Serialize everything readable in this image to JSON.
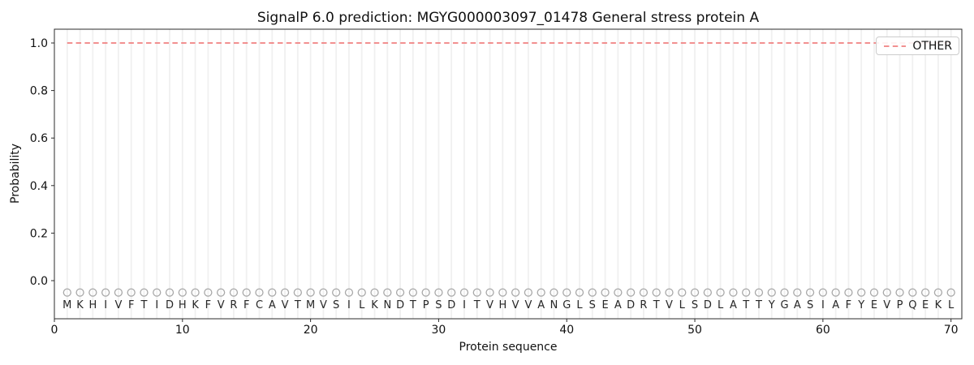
{
  "figure": {
    "title": "SignalP 6.0 prediction: MGYG000003097_01478 General stress protein A",
    "xlabel": "Protein sequence",
    "ylabel": "Probability",
    "legend_label": "OTHER"
  },
  "chart_data": {
    "type": "line",
    "title": "SignalP 6.0 prediction: MGYG000003097_01478 General stress protein A",
    "xlabel": "Protein sequence",
    "ylabel": "Probability",
    "xlim": [
      0,
      70.9
    ],
    "ylim": [
      -0.16,
      1.06
    ],
    "x_ticks": [
      0,
      10,
      20,
      30,
      40,
      50,
      60,
      70
    ],
    "x_tick_labels": [
      "0",
      "10",
      "20",
      "30",
      "40",
      "50",
      "60",
      "70"
    ],
    "y_ticks": [
      0.0,
      0.2,
      0.4,
      0.6,
      0.8,
      1.0
    ],
    "y_tick_labels": [
      "0.0",
      "0.2",
      "0.4",
      "0.6",
      "0.8",
      "1.0"
    ],
    "grid": "vertical gridline at every residue position 1-70, no horizontal grid",
    "legend_position": "upper right",
    "series": [
      {
        "name": "OTHER",
        "line_style": "dashed",
        "color": "#f08080",
        "x_range": [
          1,
          70
        ],
        "y_constant": 1.0
      }
    ],
    "sequence": [
      "M",
      "K",
      "H",
      "I",
      "V",
      "F",
      "T",
      "I",
      "D",
      "H",
      "K",
      "F",
      "V",
      "R",
      "F",
      "C",
      "A",
      "V",
      "T",
      "M",
      "V",
      "S",
      "I",
      "L",
      "K",
      "N",
      "D",
      "T",
      "P",
      "S",
      "D",
      "I",
      "T",
      "V",
      "H",
      "V",
      "V",
      "A",
      "N",
      "G",
      "L",
      "S",
      "E",
      "A",
      "D",
      "R",
      "T",
      "V",
      "L",
      "S",
      "D",
      "L",
      "A",
      "T",
      "T",
      "Y",
      "G",
      "A",
      "S",
      "I",
      "A",
      "F",
      "Y",
      "E",
      "V",
      "P",
      "Q",
      "E",
      "K",
      "L"
    ],
    "sequence_marker_y": -0.05,
    "sequence_marker_shape": "open-circle"
  },
  "colors": {
    "other_line": "#f08080",
    "grid_line": "#f0f0f0",
    "frame": "#2b2b2b",
    "tick": "#2b2b2b",
    "tick_label": "#111111",
    "residue_marker": "#a8a8a8",
    "residue_letter": "#262626",
    "legend_border": "#cccccc"
  }
}
